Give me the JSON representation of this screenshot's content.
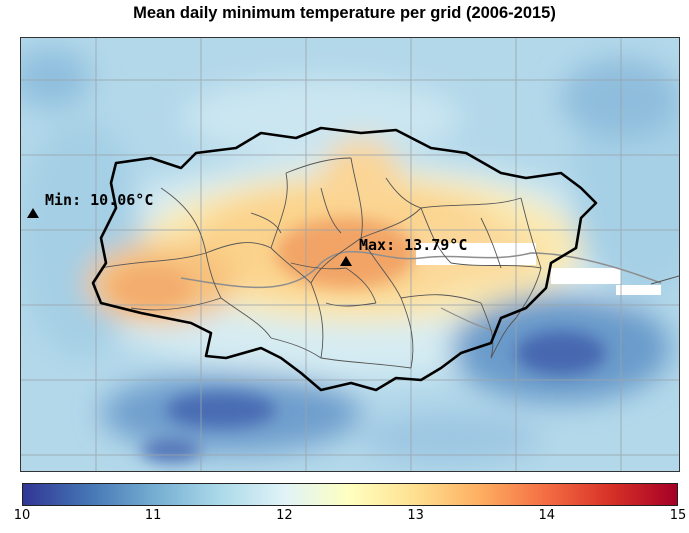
{
  "title": "Mean daily minimum temperature per grid (2006-2015)",
  "map": {
    "min_label": "Min: 10.06°C",
    "max_label": "Max: 13.79°C",
    "min_value": 10.06,
    "max_value": 13.79,
    "units": "°C"
  },
  "colorbar": {
    "range": [
      10,
      15
    ],
    "ticks": [
      "10",
      "11",
      "12",
      "13",
      "14",
      "15"
    ],
    "colors": [
      "#313695",
      "#4575b4",
      "#74add1",
      "#abd9e9",
      "#e0f3f8",
      "#ffffbf",
      "#fee090",
      "#fdae61",
      "#f46d43",
      "#d73027",
      "#a50026"
    ]
  }
}
